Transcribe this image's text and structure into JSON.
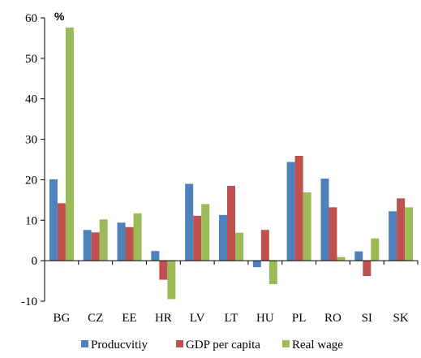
{
  "chart_data": {
    "type": "bar",
    "unit_label": "%",
    "categories": [
      "BG",
      "CZ",
      "EE",
      "HR",
      "LV",
      "LT",
      "HU",
      "PL",
      "RO",
      "SI",
      "SK"
    ],
    "series": [
      {
        "name": "Producvitiy",
        "color": "#4F81BD",
        "values": [
          20.1,
          7.6,
          9.4,
          2.4,
          19.0,
          11.3,
          -1.6,
          24.4,
          20.3,
          2.3,
          12.2
        ]
      },
      {
        "name": "GDP per capita",
        "color": "#C0504D",
        "values": [
          14.2,
          7.0,
          8.3,
          -4.7,
          11.1,
          18.5,
          7.6,
          25.9,
          13.2,
          -3.8,
          15.4
        ]
      },
      {
        "name": "Real wage",
        "color": "#9BBB59",
        "values": [
          57.6,
          10.2,
          11.7,
          -9.5,
          14.0,
          6.9,
          -5.8,
          16.9,
          0.9,
          5.5,
          13.2
        ]
      }
    ],
    "ylim": [
      -10,
      60
    ],
    "yticks": [
      -10,
      0,
      10,
      20,
      30,
      40,
      50,
      60
    ],
    "grid": false,
    "legend_position": "bottom"
  }
}
